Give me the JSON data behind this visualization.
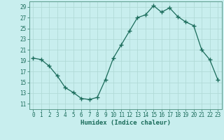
{
  "x": [
    0,
    1,
    2,
    3,
    4,
    5,
    6,
    7,
    8,
    9,
    10,
    11,
    12,
    13,
    14,
    15,
    16,
    17,
    18,
    19,
    20,
    21,
    22,
    23
  ],
  "y": [
    19.5,
    19.2,
    18.0,
    16.2,
    14.0,
    13.1,
    12.0,
    11.8,
    12.2,
    15.5,
    19.5,
    22.0,
    24.5,
    27.0,
    27.5,
    29.2,
    28.0,
    28.8,
    27.2,
    26.2,
    25.5,
    21.0,
    19.2,
    15.5
  ],
  "xlabel": "Humidex (Indice chaleur)",
  "xlim": [
    -0.5,
    23.5
  ],
  "ylim": [
    10,
    30
  ],
  "yticks": [
    11,
    13,
    15,
    17,
    19,
    21,
    23,
    25,
    27,
    29
  ],
  "xticks": [
    0,
    1,
    2,
    3,
    4,
    5,
    6,
    7,
    8,
    9,
    10,
    11,
    12,
    13,
    14,
    15,
    16,
    17,
    18,
    19,
    20,
    21,
    22,
    23
  ],
  "line_color": "#1a6b5a",
  "bg_color": "#c8eeee",
  "grid_color": "#aed8d4",
  "spine_color": "#5a9a8a"
}
